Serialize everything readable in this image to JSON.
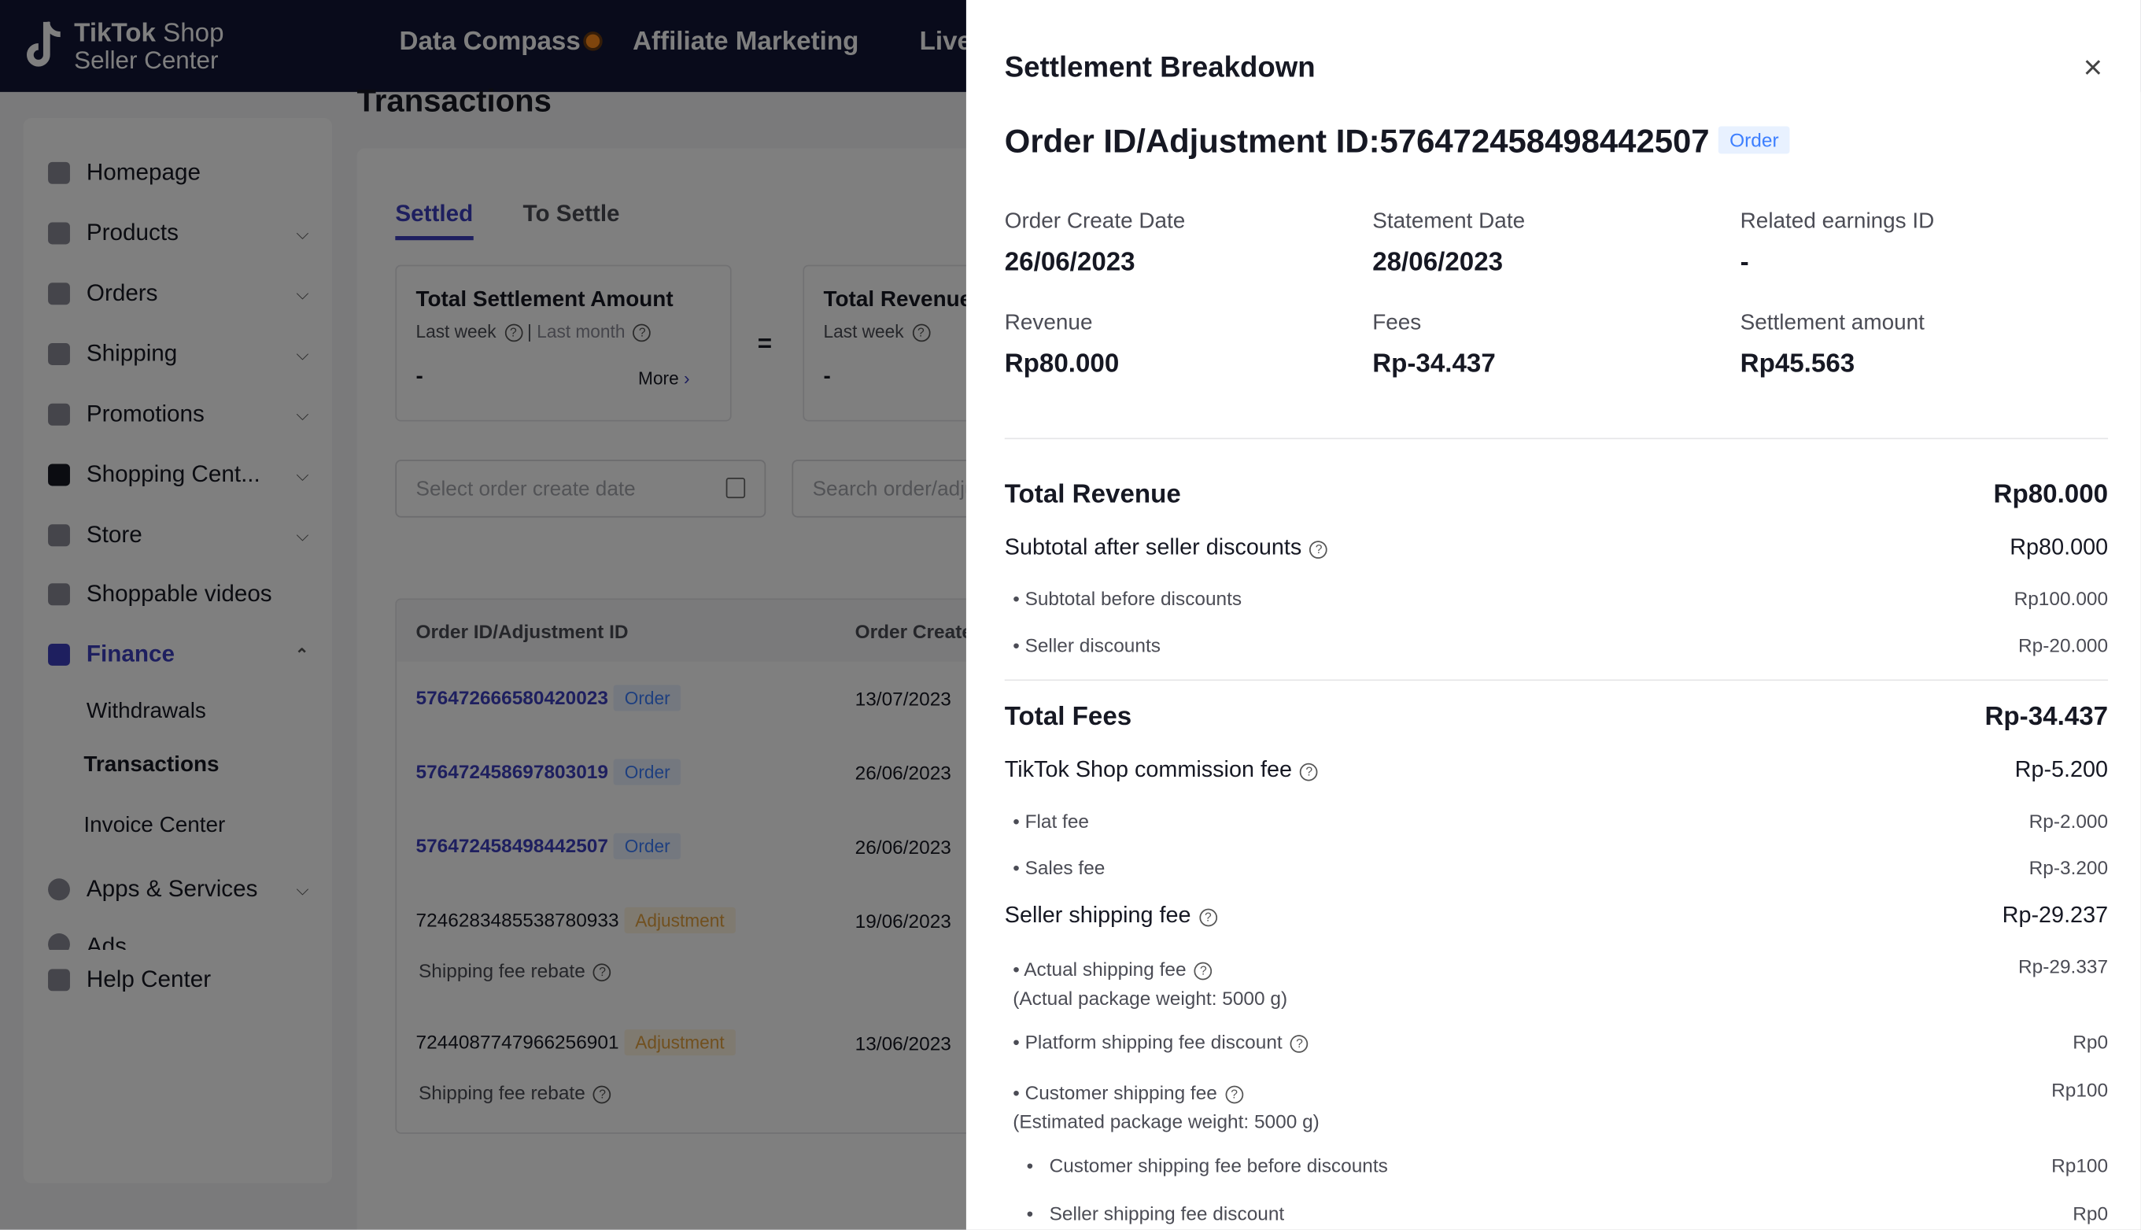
{
  "topbar": {
    "brand_line1": "TikTok",
    "brand_line1b": "Shop",
    "brand_line2": "Seller Center",
    "nav": [
      "Data Compass",
      "Affiliate Marketing",
      "Live"
    ]
  },
  "sidebar": {
    "items": [
      {
        "label": "Homepage"
      },
      {
        "label": "Products"
      },
      {
        "label": "Orders"
      },
      {
        "label": "Shipping"
      },
      {
        "label": "Promotions"
      },
      {
        "label": "Shopping Cent..."
      },
      {
        "label": "Store"
      },
      {
        "label": "Shoppable videos"
      },
      {
        "label": "Finance"
      },
      {
        "label": "Apps & Services"
      },
      {
        "label": "Ads"
      },
      {
        "label": "Help Center"
      }
    ],
    "finance_sub": [
      "Withdrawals",
      "Transactions",
      "Invoice Center"
    ]
  },
  "main": {
    "title": "Transactions",
    "tabs": [
      "Settled",
      "To Settle"
    ],
    "cards": [
      {
        "title": "Total Settlement Amount",
        "period1": "Last week",
        "period2": "Last month",
        "value": "-",
        "more": "More"
      },
      {
        "title": "Total Revenue",
        "period1": "Last week",
        "value": "-"
      }
    ],
    "equals": "=",
    "date_placeholder": "Select order create date",
    "search_placeholder": "Search order/adjustment ID",
    "table": {
      "headers": [
        "Order ID/Adjustment ID",
        "Order Create Date"
      ],
      "rows": [
        {
          "id": "576472666580420023",
          "tag": "Order",
          "date": "13/07/2023"
        },
        {
          "id": "576472458697803019",
          "tag": "Order",
          "date": "26/06/2023"
        },
        {
          "id": "576472458498442507",
          "tag": "Order",
          "date": "26/06/2023"
        },
        {
          "id": "7246283485538780933",
          "tag": "Adjustment",
          "date": "19/06/2023",
          "note": "Shipping fee rebate"
        },
        {
          "id": "7244087747966256901",
          "tag": "Adjustment",
          "date": "13/06/2023",
          "note": "Shipping fee rebate"
        }
      ]
    }
  },
  "drawer": {
    "title": "Settlement Breakdown",
    "order_id": "Order ID/Adjustment ID:576472458498442507",
    "order_tag": "Order",
    "info": [
      {
        "label": "Order Create Date",
        "value": "26/06/2023"
      },
      {
        "label": "Statement Date",
        "value": "28/06/2023"
      },
      {
        "label": "Related earnings ID",
        "value": "-"
      },
      {
        "label": "Revenue",
        "value": "Rp80.000"
      },
      {
        "label": "Fees",
        "value": "Rp-34.437"
      },
      {
        "label": "Settlement amount",
        "value": "Rp45.563"
      }
    ],
    "total_revenue": {
      "label": "Total Revenue",
      "value": "Rp80.000"
    },
    "subtotal_after": {
      "label": "Subtotal after seller discounts",
      "value": "Rp80.000"
    },
    "subtotal_before": {
      "label": "Subtotal before discounts",
      "value": "Rp100.000"
    },
    "seller_discounts": {
      "label": "Seller discounts",
      "value": "Rp-20.000"
    },
    "total_fees": {
      "label": "Total Fees",
      "value": "Rp-34.437"
    },
    "commission": {
      "label": "TikTok Shop commission fee",
      "value": "Rp-5.200"
    },
    "flat_fee": {
      "label": "Flat fee",
      "value": "Rp-2.000"
    },
    "sales_fee": {
      "label": "Sales fee",
      "value": "Rp-3.200"
    },
    "seller_shipping": {
      "label": "Seller shipping fee",
      "value": "Rp-29.237"
    },
    "actual_shipping": {
      "label": "Actual shipping fee",
      "note": "(Actual package weight: 5000 g)",
      "value": "Rp-29.337"
    },
    "platform_discount": {
      "label": "Platform shipping fee discount",
      "value": "Rp0"
    },
    "customer_shipping": {
      "label": "Customer shipping fee",
      "note": "(Estimated package weight: 5000 g)",
      "value": "Rp100"
    },
    "customer_before": {
      "label": "Customer shipping fee before discounts",
      "value": "Rp100"
    },
    "seller_ship_discount": {
      "label": "Seller shipping fee discount",
      "value": "Rp0"
    }
  },
  "colors": {
    "topbar": "#121736",
    "accent": "#3d3fbf",
    "order_tag": "#3d7fff",
    "adjustment_tag": "#e2a13f"
  }
}
